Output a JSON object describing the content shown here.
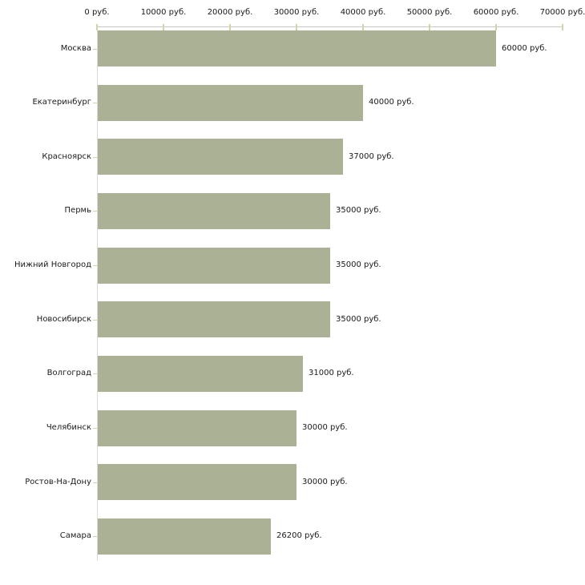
{
  "chart_data": {
    "type": "bar",
    "orientation": "horizontal",
    "title": "",
    "categories": [
      "Москва",
      "Екатеринбург",
      "Красноярск",
      "Пермь",
      "Нижний Новгород",
      "Новосибирск",
      "Волгоград",
      "Челябинск",
      "Ростов-На-Дону",
      "Самара"
    ],
    "values": [
      60000,
      40000,
      37000,
      35000,
      35000,
      35000,
      31000,
      30000,
      30000,
      26200
    ],
    "value_labels": [
      "60000 руб.",
      "40000 руб.",
      "37000 руб.",
      "35000 руб.",
      "35000 руб.",
      "35000 руб.",
      "31000 руб.",
      "30000 руб.",
      "30000 руб.",
      "26200 руб."
    ],
    "xlim": [
      0,
      70000
    ],
    "x_ticks": [
      0,
      10000,
      20000,
      30000,
      40000,
      50000,
      60000,
      70000
    ],
    "x_tick_labels": [
      "0 руб.",
      "10000 руб.",
      "20000 руб.",
      "30000 руб.",
      "40000 руб.",
      "50000 руб.",
      "60000 руб.",
      "70000 руб."
    ],
    "unit": "руб.",
    "grid": false,
    "legend": false,
    "colors": {
      "bar": "#aab194",
      "axis_line_horizontal": "#c6c6c6",
      "axis_line_vertical": "#d9d9d9",
      "tick_mark": "#d5d2ab",
      "text": "#1a1a1a",
      "background": "#ffffff"
    }
  }
}
